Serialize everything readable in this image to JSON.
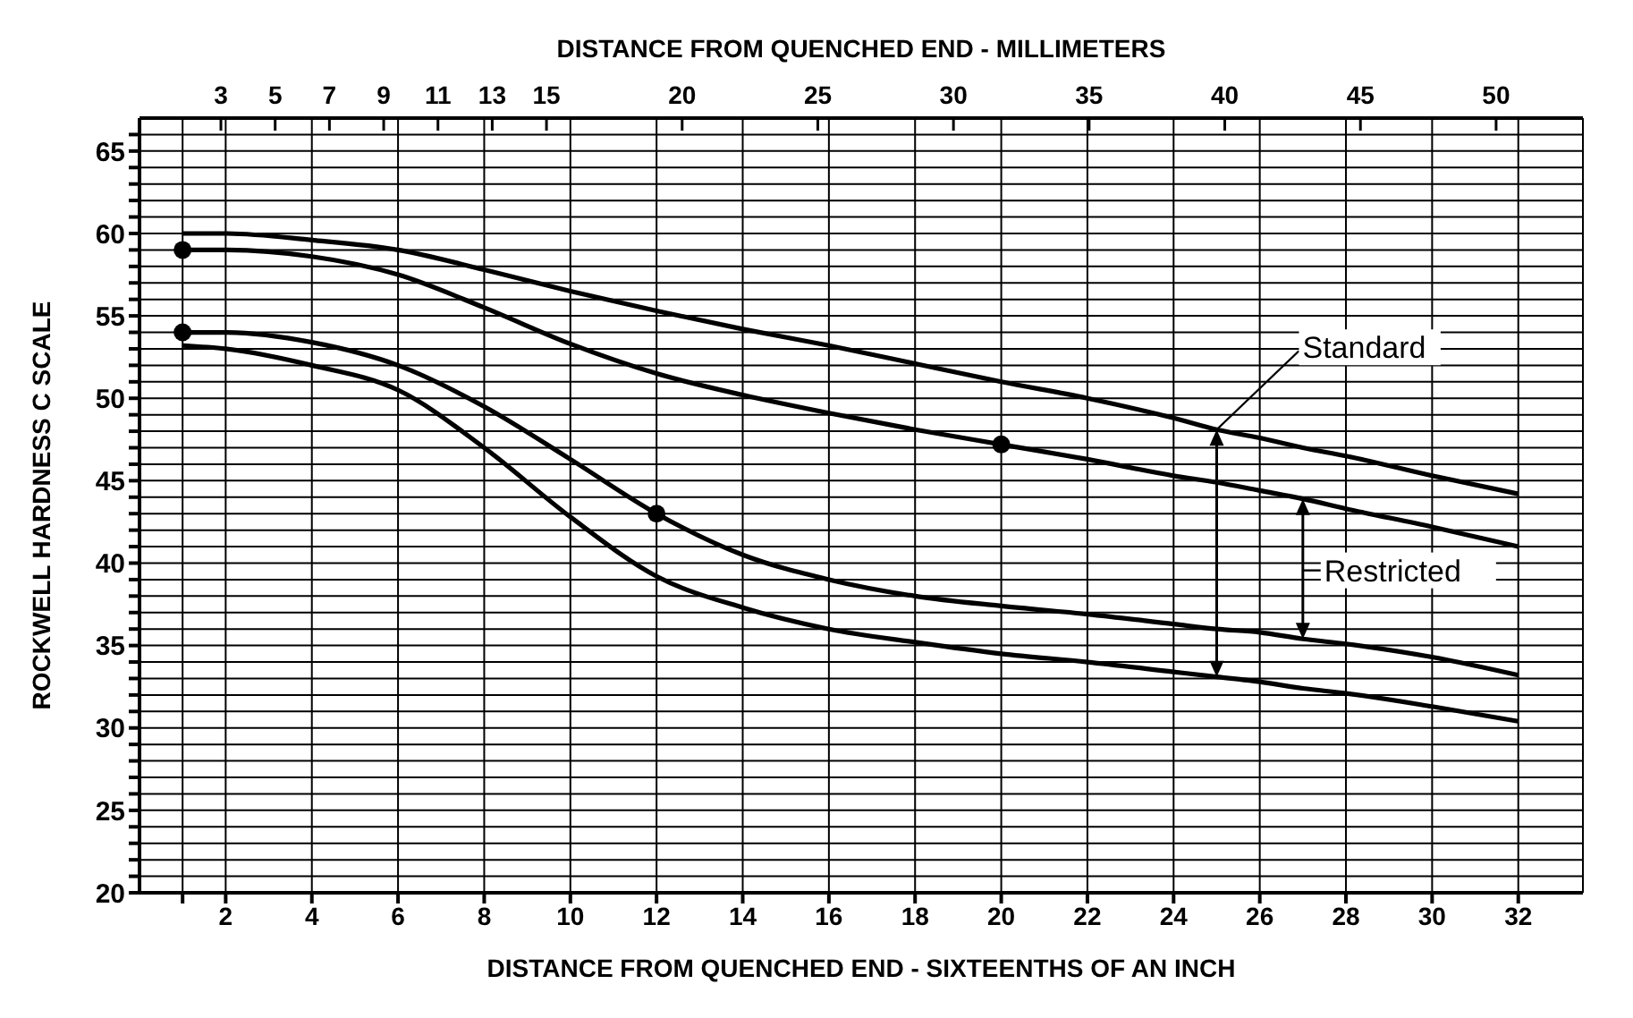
{
  "chart_data": {
    "type": "line",
    "xlabel": "DISTANCE FROM QUENCHED END - SIXTEENTHS OF AN INCH",
    "x2label": "DISTANCE FROM QUENCHED END - MILLIMETERS",
    "ylabel": "ROCKWELL HARDNESS C SCALE",
    "x": [
      1,
      2,
      4,
      6,
      8,
      10,
      12,
      14,
      16,
      18,
      20,
      22,
      24,
      25,
      26,
      27,
      28,
      30,
      32
    ],
    "series": [
      {
        "color": "#000000",
        "values": [
          60,
          60,
          59.6,
          59,
          57.8,
          56.5,
          55.3,
          54.2,
          53.2,
          52.1,
          51.0,
          50.0,
          48.8,
          48.1,
          47.6,
          47.0,
          46.5,
          45.3,
          44.2
        ]
      },
      {
        "color": "#000000",
        "values": [
          59,
          59,
          58.6,
          57.5,
          55.5,
          53.3,
          51.5,
          50.2,
          49.1,
          48.1,
          47.2,
          46.3,
          45.3,
          44.9,
          44.4,
          43.9,
          43.3,
          42.2,
          41
        ]
      },
      {
        "color": "#000000",
        "values": [
          54,
          54,
          53.4,
          52,
          49.5,
          46.3,
          43,
          40.5,
          39,
          38,
          37.4,
          36.9,
          36.3,
          36.0,
          35.8,
          35.4,
          35.1,
          34.3,
          33.2
        ]
      },
      {
        "color": "#000000",
        "values": [
          53.2,
          53,
          52,
          50.5,
          47,
          42.8,
          39.2,
          37.3,
          36,
          35.2,
          34.5,
          34,
          33.4,
          33.1,
          32.8,
          32.4,
          32.1,
          31.3,
          30.4
        ]
      },
      {
        "type": "scatter",
        "color": "#000000",
        "marker": "circle",
        "x": [
          1,
          1,
          12,
          20
        ],
        "values": [
          59,
          54,
          43,
          47.2
        ]
      }
    ],
    "annotations": [
      {
        "text": "Standard",
        "x": 25,
        "y": 48.1
      },
      {
        "text": "Restricted",
        "x": 27,
        "y": 43.9
      }
    ],
    "xlim": [
      0,
      33.5
    ],
    "xticks": [
      {
        "value": 1,
        "label": null
      },
      2,
      4,
      6,
      8,
      10,
      12,
      14,
      16,
      18,
      20,
      22,
      24,
      26,
      28,
      30,
      32
    ],
    "x2lim": [
      0,
      53.2
    ],
    "x2ticks": [
      3,
      5,
      7,
      9,
      11,
      13,
      15,
      20,
      25,
      30,
      35,
      40,
      45,
      50
    ],
    "ylim": [
      20,
      67
    ],
    "yticks": [
      20,
      {
        "value": 21,
        "label": null
      },
      {
        "value": 22,
        "label": null
      },
      {
        "value": 23,
        "label": null
      },
      {
        "value": 24,
        "label": null
      },
      25,
      {
        "value": 26,
        "label": null
      },
      {
        "value": 27,
        "label": null
      },
      {
        "value": 28,
        "label": null
      },
      {
        "value": 29,
        "label": null
      },
      30,
      {
        "value": 31,
        "label": null
      },
      {
        "value": 32,
        "label": null
      },
      {
        "value": 33,
        "label": null
      },
      {
        "value": 34,
        "label": null
      },
      35,
      {
        "value": 36,
        "label": null
      },
      {
        "value": 37,
        "label": null
      },
      {
        "value": 38,
        "label": null
      },
      {
        "value": 39,
        "label": null
      },
      40,
      {
        "value": 41,
        "label": null
      },
      {
        "value": 42,
        "label": null
      },
      {
        "value": 43,
        "label": null
      },
      {
        "value": 44,
        "label": null
      },
      45,
      {
        "value": 46,
        "label": null
      },
      {
        "value": 47,
        "label": null
      },
      {
        "value": 48,
        "label": null
      },
      {
        "value": 49,
        "label": null
      },
      50,
      {
        "value": 51,
        "label": null
      },
      {
        "value": 52,
        "label": null
      },
      {
        "value": 53,
        "label": null
      },
      {
        "value": 54,
        "label": null
      },
      55,
      {
        "value": 56,
        "label": null
      },
      {
        "value": 57,
        "label": null
      },
      {
        "value": 58,
        "label": null
      },
      {
        "value": 59,
        "label": null
      },
      60,
      {
        "value": 61,
        "label": null
      },
      {
        "value": 62,
        "label": null
      },
      {
        "value": 63,
        "label": null
      },
      {
        "value": 64,
        "label": null
      },
      65,
      {
        "value": 66,
        "label": null
      }
    ],
    "grid": true,
    "marker": "none",
    "line_style": "solid",
    "legend": false
  }
}
